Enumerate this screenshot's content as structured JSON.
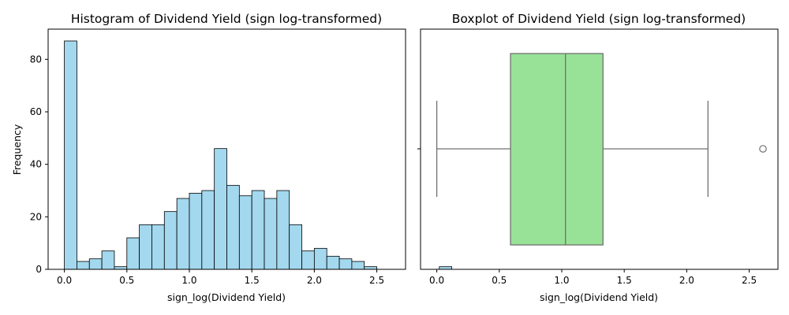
{
  "chart_data": [
    {
      "type": "histogram",
      "title": "Histogram of Dividend Yield (sign log-transformed)",
      "xlabel": "sign_log(Dividend Yield)",
      "ylabel": "Frequency",
      "xlim": [
        -0.13,
        2.73
      ],
      "ylim": [
        0,
        91.5
      ],
      "x_ticks": [
        "0.0",
        "0.5",
        "1.0",
        "1.5",
        "2.0",
        "2.5"
      ],
      "y_ticks": [
        "0",
        "20",
        "40",
        "60",
        "80"
      ],
      "bin_start": 0.0,
      "bin_width": 0.1,
      "counts": [
        87,
        3,
        4,
        7,
        1,
        12,
        17,
        17,
        22,
        27,
        29,
        30,
        46,
        32,
        28,
        30,
        27,
        30,
        17,
        7,
        8,
        5,
        4,
        3,
        1,
        0,
        0,
        0,
        0,
        0,
        1
      ],
      "bar_color": "#a3d8ee",
      "edge_color": "#000000",
      "grid": false
    },
    {
      "type": "boxplot",
      "title": "Boxplot of Dividend Yield (sign log-transformed)",
      "xlabel": "sign_log(Dividend Yield)",
      "ylabel": "",
      "xlim": [
        -0.13,
        2.73
      ],
      "x_ticks": [
        "0.0",
        "0.5",
        "1.0",
        "1.5",
        "2.0",
        "2.5"
      ],
      "whisker_low": 0.0,
      "q1": 0.59,
      "median": 1.03,
      "q3": 1.33,
      "whisker_high": 2.17,
      "outliers": [
        2.61
      ],
      "box_color": "#98e298",
      "line_color": "#707070",
      "grid": false
    }
  ]
}
